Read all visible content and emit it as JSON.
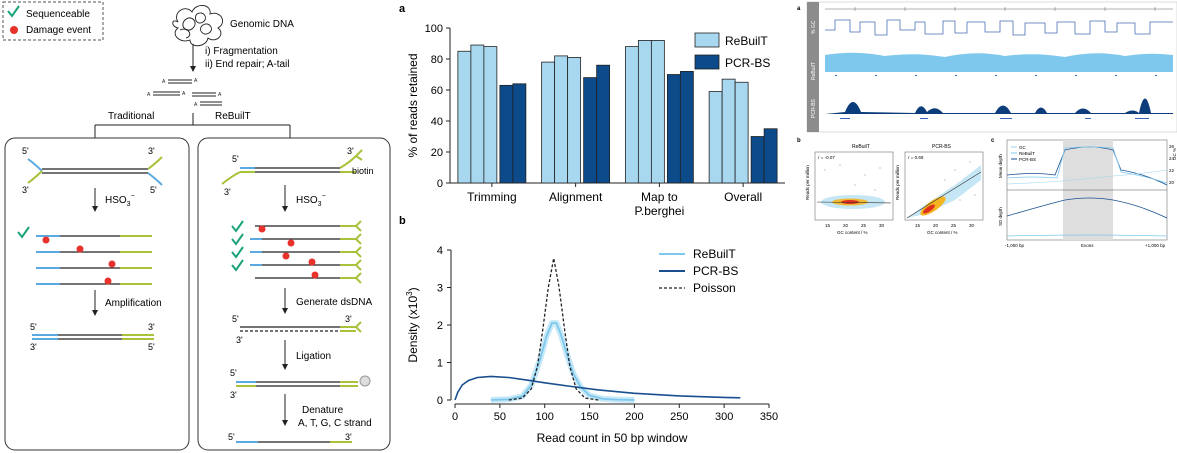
{
  "left_schematic": {
    "legend": {
      "sequenceable": "Sequenceable",
      "damage": "Damage event"
    },
    "genomic_dna": "Genomic DNA",
    "step_fragmentation": "i)  Fragmentation",
    "step_end_repair": "ii) End repair; A-tail",
    "a_letter": "A",
    "branch_traditional": "Traditional",
    "branch_rebuilt": "ReBuilT",
    "five_prime": "5'",
    "three_prime": "3'",
    "hso3": "HSO",
    "hso3_sub": "3",
    "hso3_sup": "−",
    "amplification": "Amplification",
    "biotin": "biotin",
    "generate_dsdna": "Generate dsDNA",
    "ligation": "Ligation",
    "denature": "Denature",
    "denature_strands": "A, T, G, C strand"
  },
  "panel_a_label": "a",
  "panel_b_label": "b",
  "chart_data": [
    {
      "type": "bar",
      "ylabel": "% of reads retained",
      "ylim": [
        0,
        100
      ],
      "yticks": [
        0,
        20,
        40,
        60,
        80,
        100
      ],
      "categories": [
        "Trimming",
        "Alignment",
        "Map to\nP.berghei",
        "Overall"
      ],
      "series": [
        {
          "name": "ReBuilT",
          "color": "#a8d8f0",
          "values": [
            [
              85,
              89,
              88
            ],
            [
              78,
              82,
              81
            ],
            [
              88,
              92,
              92
            ],
            [
              59,
              67,
              65
            ]
          ]
        },
        {
          "name": "PCR-BS",
          "color": "#0c4a8a",
          "values": [
            [
              63,
              64
            ],
            [
              68,
              76
            ],
            [
              70,
              72
            ],
            [
              30,
              35
            ]
          ]
        }
      ],
      "legend": "top-right"
    },
    {
      "type": "line",
      "xlabel": "Read count in 50 bp window",
      "ylabel": "Density (x10",
      "ylabel_sup": "3",
      "ylabel_end": ")",
      "xlim": [
        0,
        350
      ],
      "ylim": [
        0,
        4
      ],
      "xticks": [
        0,
        50,
        100,
        150,
        200,
        250,
        300,
        350
      ],
      "yticks": [
        0,
        1,
        2,
        3,
        4
      ],
      "series": [
        {
          "name": "ReBuilT",
          "color": "#7ec8ee",
          "points": [
            [
              40,
              0
            ],
            [
              60,
              0.02
            ],
            [
              75,
              0.1
            ],
            [
              85,
              0.4
            ],
            [
              95,
              1.1
            ],
            [
              102,
              1.7
            ],
            [
              108,
              2.05
            ],
            [
              113,
              2.05
            ],
            [
              118,
              1.75
            ],
            [
              125,
              1.2
            ],
            [
              132,
              0.7
            ],
            [
              140,
              0.35
            ],
            [
              150,
              0.12
            ],
            [
              165,
              0.03
            ],
            [
              180,
              0.01
            ],
            [
              200,
              0
            ]
          ]
        },
        {
          "name": "PCR-BS",
          "color": "#1a4f8f",
          "points": [
            [
              0,
              0
            ],
            [
              3,
              0.2
            ],
            [
              8,
              0.4
            ],
            [
              15,
              0.52
            ],
            [
              25,
              0.6
            ],
            [
              40,
              0.63
            ],
            [
              60,
              0.6
            ],
            [
              80,
              0.53
            ],
            [
              100,
              0.46
            ],
            [
              130,
              0.36
            ],
            [
              160,
              0.27
            ],
            [
              200,
              0.18
            ],
            [
              250,
              0.11
            ],
            [
              300,
              0.07
            ],
            [
              318,
              0.06
            ]
          ]
        },
        {
          "name": "Poisson",
          "color": "#222222",
          "points": [
            [
              60,
              0
            ],
            [
              75,
              0.05
            ],
            [
              85,
              0.3
            ],
            [
              92,
              0.9
            ],
            [
              98,
              1.9
            ],
            [
              104,
              3.0
            ],
            [
              110,
              3.78
            ],
            [
              116,
              3.0
            ],
            [
              122,
              1.9
            ],
            [
              128,
              0.9
            ],
            [
              135,
              0.3
            ],
            [
              145,
              0.05
            ],
            [
              160,
              0
            ]
          ]
        }
      ],
      "legend": "top-right"
    }
  ],
  "right_panels": {
    "panel_a": "a",
    "panel_b": "b",
    "panel_c": "c",
    "track_gc": "% GC",
    "track_rebuilt": "ReBuilT",
    "track_pcr": "PCR-BS",
    "scatter_rebuilt_title": "ReBuilT",
    "scatter_pcr_title": "PCR-BS",
    "r_rebuilt": "r = -0.07",
    "r_pcr": "r = 0.69",
    "scatter_ylabel": "Reads per million",
    "scatter_xlabel": "GC content / %",
    "scatter_xticks": [
      "15",
      "20",
      "25",
      "30"
    ],
    "legend_gc": "GC",
    "legend_rebuilt": "ReBuilT",
    "legend_pcr": "PCR-BS",
    "mean_depth": "Mean depth",
    "sd_depth": "SD depth",
    "gc_pct": "GC %",
    "exons": "Exons",
    "left_bp": "-1,000 bp",
    "right_bp": "+1,000 bp",
    "right_ticks": [
      "26",
      "24",
      "22",
      "20"
    ]
  }
}
